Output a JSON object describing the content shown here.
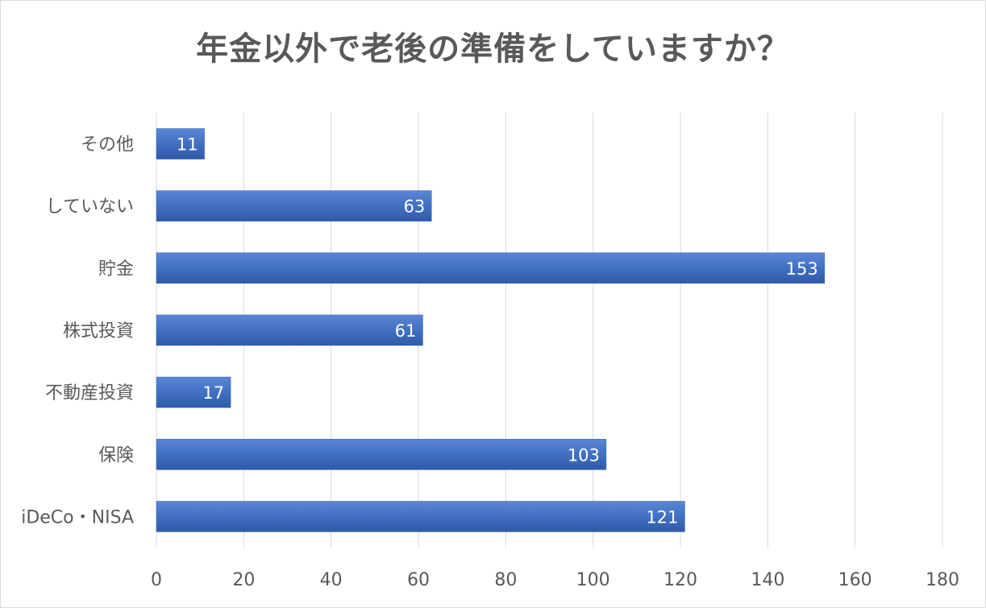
{
  "chart_data": {
    "type": "bar",
    "orientation": "horizontal",
    "title": "年金以外で老後の準備をしていますか？",
    "categories": [
      "その他",
      "していない",
      "貯金",
      "株式投資",
      "不動産投資",
      "保険",
      "iDeCo・NISA"
    ],
    "values": [
      11,
      63,
      153,
      61,
      17,
      103,
      121
    ],
    "xlim": [
      0,
      180
    ],
    "xticks": [
      0,
      20,
      40,
      60,
      80,
      100,
      120,
      140,
      160,
      180
    ],
    "grid": true,
    "data_labels": true,
    "bar_color": "#4472c4",
    "bar_color_dark": "#2f5597"
  }
}
